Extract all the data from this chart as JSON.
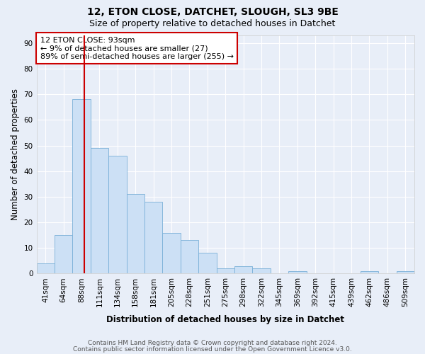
{
  "title1": "12, ETON CLOSE, DATCHET, SLOUGH, SL3 9BE",
  "title2": "Size of property relative to detached houses in Datchet",
  "xlabel": "Distribution of detached houses by size in Datchet",
  "ylabel": "Number of detached properties",
  "categories": [
    "41sqm",
    "64sqm",
    "88sqm",
    "111sqm",
    "134sqm",
    "158sqm",
    "181sqm",
    "205sqm",
    "228sqm",
    "251sqm",
    "275sqm",
    "298sqm",
    "322sqm",
    "345sqm",
    "369sqm",
    "392sqm",
    "415sqm",
    "439sqm",
    "462sqm",
    "486sqm",
    "509sqm"
  ],
  "values": [
    4,
    15,
    68,
    49,
    46,
    31,
    28,
    16,
    13,
    8,
    2,
    3,
    2,
    0,
    1,
    0,
    0,
    0,
    1,
    0,
    1
  ],
  "bar_color": "#cce0f5",
  "bar_edge_color": "#7ab0d8",
  "red_line_x": 2.17,
  "annotation_line1": "12 ETON CLOSE: 93sqm",
  "annotation_line2": "← 9% of detached houses are smaller (27)",
  "annotation_line3": "89% of semi-detached houses are larger (255) →",
  "annotation_box_color": "white",
  "annotation_box_edge_color": "#cc0000",
  "ylim": [
    0,
    93
  ],
  "yticks": [
    0,
    10,
    20,
    30,
    40,
    50,
    60,
    70,
    80,
    90
  ],
  "footer1": "Contains HM Land Registry data © Crown copyright and database right 2024.",
  "footer2": "Contains public sector information licensed under the Open Government Licence v3.0.",
  "background_color": "#e8eef8",
  "plot_bg_color": "#e8eef8",
  "grid_color": "white",
  "title_fontsize": 10,
  "subtitle_fontsize": 9,
  "axis_label_fontsize": 8.5,
  "tick_fontsize": 7.5,
  "annotation_fontsize": 8,
  "footer_fontsize": 6.5
}
